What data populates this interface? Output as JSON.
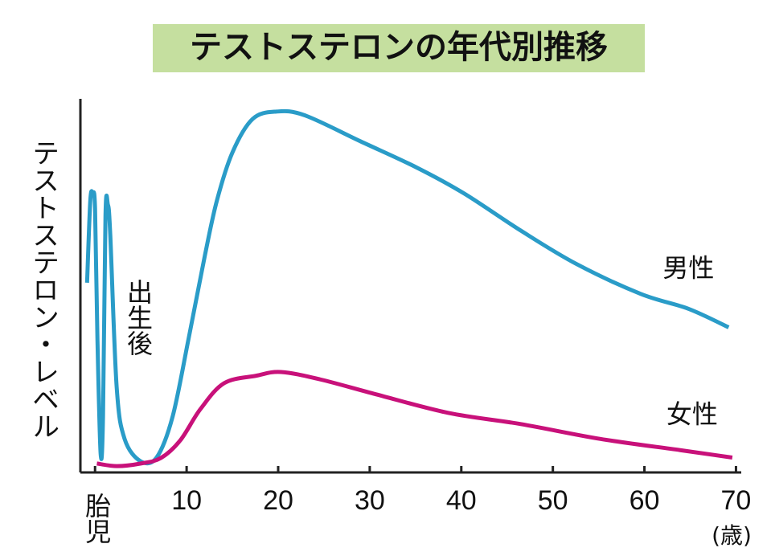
{
  "chart_data": {
    "type": "line",
    "title": "テストステロンの年代別推移",
    "y_label": "テストステロン・レベル",
    "x_unit": "(歳)",
    "annotation": "出生後",
    "xlim": [
      -1.6,
      70.4
    ],
    "ylim": [
      0,
      100
    ],
    "xticks": [
      {
        "value": 0,
        "label": "胎児"
      },
      10,
      20,
      30,
      40,
      50,
      60,
      70
    ],
    "series": [
      {
        "name": "男性",
        "color": "#2a9cc8",
        "x": [
          -0.87,
          -0.52,
          -0.26,
          0,
          0.26,
          0.61,
          0.87,
          1.14,
          1.4,
          1.66,
          2.36,
          3.23,
          4.98,
          6.72,
          8.47,
          10.22,
          11.97,
          13.3,
          15.0,
          17.2,
          19.8,
          22.9,
          29,
          35.1,
          40.3,
          46.5,
          52.6,
          59.6,
          64.8,
          69.2
        ],
        "values": [
          51,
          73,
          75,
          71,
          36,
          5,
          15,
          69,
          72,
          64,
          23,
          9,
          3,
          4,
          15,
          36,
          58,
          73,
          86,
          95,
          97,
          96,
          89,
          82,
          75,
          65,
          56,
          48,
          44,
          39
        ]
      },
      {
        "name": "女性",
        "color": "#c8117a",
        "x": [
          0.2,
          2.4,
          5,
          7.2,
          9.3,
          11.5,
          14.1,
          17.6,
          20.3,
          24.6,
          30.7,
          38.6,
          46.5,
          55.2,
          63.9,
          69.6
        ],
        "values": [
          2.4,
          1.7,
          2.4,
          3.9,
          8.6,
          17,
          24,
          26,
          27,
          25,
          21,
          16,
          13,
          9,
          6,
          4
        ]
      }
    ]
  }
}
